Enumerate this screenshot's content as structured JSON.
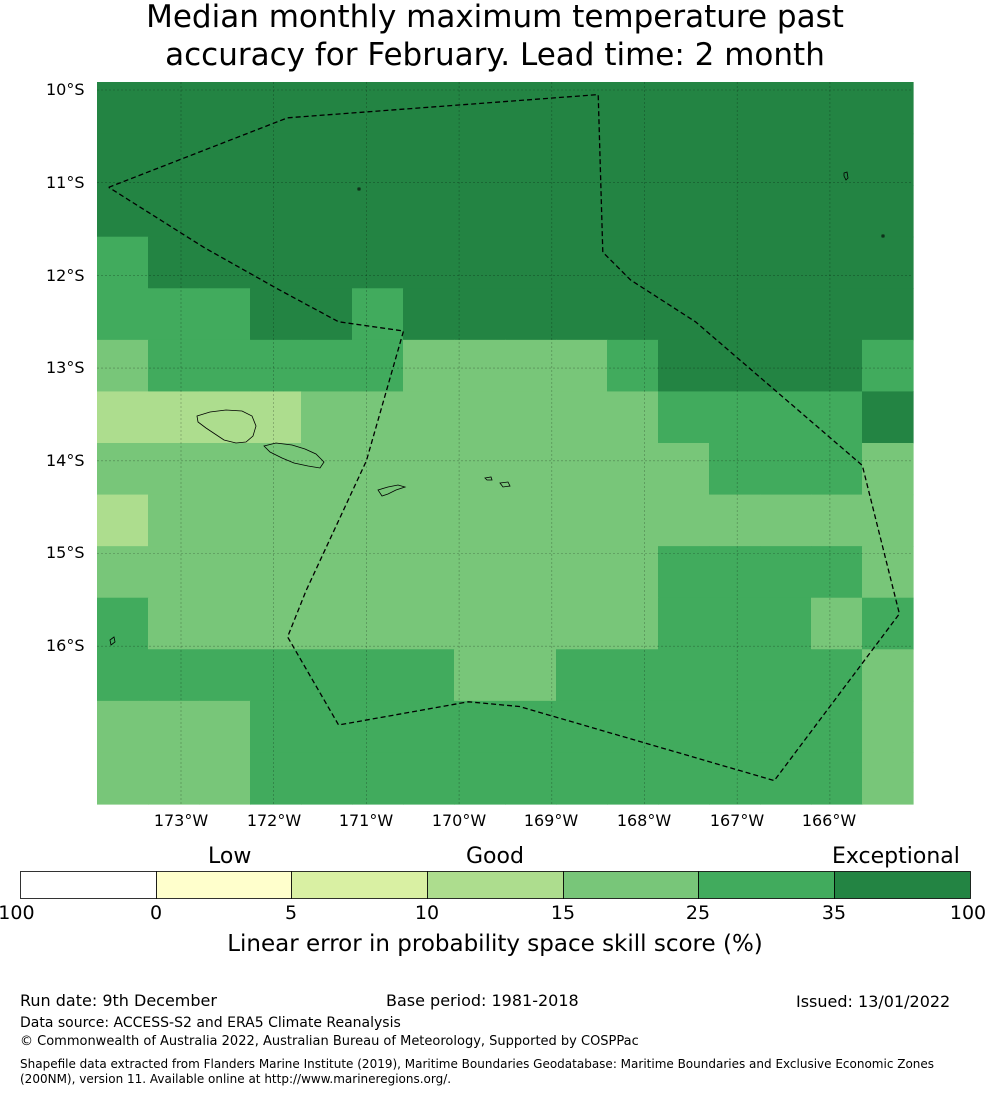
{
  "title": {
    "line1": "Median monthly maximum temperature past",
    "line2": "accuracy for February. Lead time: 2 month"
  },
  "map": {
    "lat_labels": [
      "10°S",
      "11°S",
      "12°S",
      "13°S",
      "14°S",
      "15°S",
      "16°S"
    ],
    "lon_labels": [
      "173°W",
      "172°W",
      "171°W",
      "170°W",
      "169°W",
      "168°W",
      "167°W",
      "166°W"
    ],
    "skill_grid_bins": [
      [
        6,
        6,
        6,
        6,
        6,
        6,
        6,
        6,
        6,
        6,
        6,
        6,
        6,
        6,
        6,
        6
      ],
      [
        6,
        6,
        6,
        6,
        6,
        6,
        6,
        6,
        6,
        6,
        6,
        6,
        6,
        6,
        6,
        6
      ],
      [
        6,
        6,
        6,
        6,
        6,
        6,
        6,
        6,
        6,
        6,
        6,
        6,
        6,
        6,
        6,
        6
      ],
      [
        5,
        6,
        6,
        6,
        6,
        6,
        6,
        6,
        6,
        6,
        6,
        6,
        6,
        6,
        6,
        6
      ],
      [
        5,
        5,
        5,
        6,
        6,
        5,
        6,
        6,
        6,
        6,
        6,
        6,
        6,
        6,
        6,
        6
      ],
      [
        4,
        5,
        5,
        5,
        5,
        5,
        4,
        4,
        4,
        4,
        5,
        6,
        6,
        6,
        6,
        5
      ],
      [
        3,
        3,
        3,
        3,
        4,
        4,
        4,
        4,
        4,
        4,
        4,
        5,
        5,
        5,
        5,
        6
      ],
      [
        4,
        4,
        4,
        4,
        4,
        4,
        4,
        4,
        4,
        4,
        4,
        4,
        5,
        5,
        5,
        4
      ],
      [
        3,
        4,
        4,
        4,
        4,
        4,
        4,
        4,
        4,
        4,
        4,
        4,
        4,
        4,
        4,
        4
      ],
      [
        4,
        4,
        4,
        4,
        4,
        4,
        4,
        4,
        4,
        4,
        4,
        5,
        5,
        5,
        5,
        4
      ],
      [
        5,
        4,
        4,
        4,
        4,
        4,
        4,
        4,
        4,
        4,
        4,
        5,
        5,
        5,
        4,
        5
      ],
      [
        5,
        5,
        5,
        5,
        5,
        5,
        5,
        4,
        4,
        5,
        5,
        5,
        5,
        5,
        5,
        4
      ],
      [
        4,
        4,
        4,
        5,
        5,
        5,
        5,
        5,
        5,
        5,
        5,
        5,
        5,
        5,
        5,
        4
      ],
      [
        4,
        4,
        4,
        5,
        5,
        5,
        5,
        5,
        5,
        5,
        5,
        5,
        5,
        5,
        5,
        4
      ]
    ],
    "eez_boundary_lonlat": [
      [
        -173.78,
        -11.05
      ],
      [
        -171.85,
        -10.3
      ],
      [
        -168.5,
        -10.05
      ],
      [
        -168.45,
        -11.75
      ],
      [
        -168.15,
        -12.05
      ],
      [
        -167.45,
        -12.5
      ],
      [
        -165.65,
        -14.05
      ],
      [
        -165.25,
        -15.65
      ],
      [
        -166.6,
        -17.45
      ],
      [
        -169.35,
        -16.65
      ],
      [
        -169.9,
        -16.6
      ],
      [
        -171.3,
        -16.85
      ],
      [
        -171.85,
        -15.9
      ],
      [
        -171.65,
        -15.4
      ],
      [
        -171.0,
        -14.0
      ],
      [
        -170.6,
        -12.6
      ],
      [
        -171.3,
        -12.5
      ],
      [
        -171.95,
        -12.15
      ],
      [
        -172.75,
        -11.7
      ],
      [
        -173.78,
        -11.05
      ]
    ]
  },
  "colorbar": {
    "category_labels": [
      "Low",
      "Good",
      "Exceptional"
    ],
    "tick_labels": [
      "-100",
      "0",
      "5",
      "10",
      "15",
      "25",
      "35",
      "100"
    ],
    "colors": [
      "#ffffff",
      "#ffffcc",
      "#d9f0a3",
      "#addd8e",
      "#78c679",
      "#41ab5d",
      "#238443"
    ],
    "title": "Linear error in probability space skill score (%)"
  },
  "footer": {
    "run_date": "Run date: 9th December",
    "base_period": "Base period: 1981-2018",
    "issued": "Issued: 13/01/2022",
    "data_source": "Data source: ACCESS-S2 and ERA5 Climate Reanalysis",
    "copyright": "© Commonwealth of Australia 2022, Australian Bureau of Meteorology, Supported by COSPPac",
    "shapefile": "Shapefile data extracted from Flanders Marine Institute (2019), Maritime Boundaries Geodatabase: Maritime Boundaries and Exclusive Economic Zones (200NM), version 11. Available online at http://www.marineregions.org/."
  }
}
